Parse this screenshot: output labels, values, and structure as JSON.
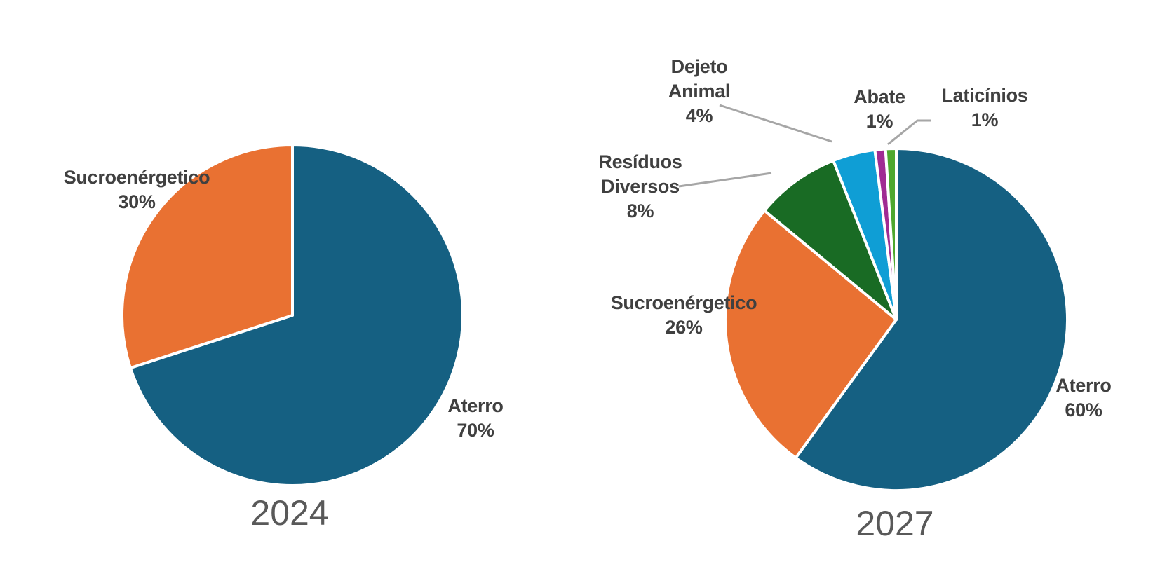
{
  "page": {
    "background": "#ffffff"
  },
  "chart_data": [
    {
      "type": "pie",
      "title": "2024",
      "categories": [
        "Aterro",
        "Sucroenérgetico"
      ],
      "values": [
        70,
        30
      ],
      "unit": "%",
      "colors": [
        "#156082",
        "#E97132"
      ],
      "slice_border_color": "#FFFFFF",
      "start_angle_deg": 0,
      "direction": "clockwise",
      "legend": "none",
      "data_labels": [
        "Aterro 70%",
        "Sucroenérgetico 30%"
      ]
    },
    {
      "type": "pie",
      "title": "2027",
      "categories": [
        "Aterro",
        "Sucroenérgetico",
        "Resíduos Diversos",
        "Dejeto Animal",
        "Abate",
        "Laticínios"
      ],
      "values": [
        60,
        26,
        8,
        4,
        1,
        1
      ],
      "unit": "%",
      "colors": [
        "#156082",
        "#E97132",
        "#196B24",
        "#0F9ED5",
        "#A02B93",
        "#4EA72E"
      ],
      "slice_border_color": "#FFFFFF",
      "leader_line_color": "#A6A6A6",
      "start_angle_deg": 0,
      "direction": "clockwise",
      "legend": "none",
      "data_labels": [
        "Aterro 60%",
        "Sucroenérgetico 26%",
        "Resíduos Diversos 8%",
        "Dejeto Animal 4%",
        "Abate 1%",
        "Laticínios 1%"
      ]
    }
  ],
  "annotations": {
    "p2024": {
      "title": "2024",
      "sucro": [
        "Sucroenérgetico",
        "30%"
      ],
      "aterro": [
        "Aterro",
        "70%"
      ]
    },
    "p2027": {
      "title": "2027",
      "dejeto": [
        "Dejeto",
        "Animal",
        "4%"
      ],
      "residuos": [
        "Resíduos",
        "Diversos",
        "8%"
      ],
      "abate": [
        "Abate",
        "1%"
      ],
      "laticinios": [
        "Laticínios",
        "1%"
      ],
      "sucro": [
        "Sucroenérgetico",
        "26%"
      ],
      "aterro": [
        "Aterro",
        "60%"
      ]
    }
  },
  "text_colors": {
    "label": "#404040",
    "title": "#595959"
  }
}
